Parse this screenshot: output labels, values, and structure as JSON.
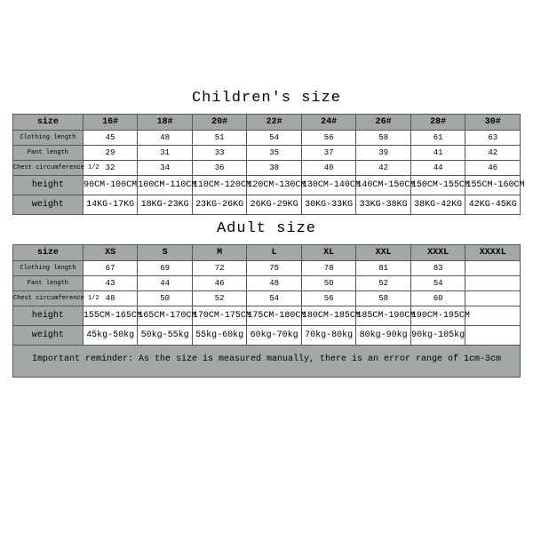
{
  "children": {
    "title": "Children's size",
    "headers": [
      "size",
      "16#",
      "18#",
      "20#",
      "22#",
      "24#",
      "26#",
      "28#",
      "30#"
    ],
    "rows": [
      {
        "label": "Clothing length",
        "label_small": true,
        "cells": [
          "45",
          "48",
          "51",
          "54",
          "56",
          "58",
          "61",
          "63"
        ]
      },
      {
        "label": "Pant length",
        "label_small": true,
        "cells": [
          "29",
          "31",
          "33",
          "35",
          "37",
          "39",
          "41",
          "42"
        ]
      },
      {
        "label": "Chest circumference 1/2",
        "label_small": true,
        "cells": [
          "32",
          "34",
          "36",
          "38",
          "40",
          "42",
          "44",
          "46"
        ]
      },
      {
        "label": "height",
        "tall": true,
        "cells": [
          "90CM-100CM",
          "100CM-110CM",
          "110CM-120CM",
          "120CM-130CM",
          "130CM-140CM",
          "140CM-150CM",
          "150CM-155CM",
          "155CM-160CM"
        ]
      },
      {
        "label": "weight",
        "tall": true,
        "cells": [
          "14KG-17KG",
          "18KG-23KG",
          "23KG-26KG",
          "26KG-29KG",
          "30KG-33KG",
          "33KG-38KG",
          "38KG-42KG",
          "42KG-45KG"
        ]
      }
    ]
  },
  "adult": {
    "title": "Adult size",
    "headers": [
      "size",
      "XS",
      "S",
      "M",
      "L",
      "XL",
      "XXL",
      "XXXL",
      "XXXXL"
    ],
    "rows": [
      {
        "label": "Clothing length",
        "label_small": true,
        "cells": [
          "67",
          "69",
          "72",
          "75",
          "78",
          "81",
          "83",
          ""
        ]
      },
      {
        "label": "Pant length",
        "label_small": true,
        "cells": [
          "43",
          "44",
          "46",
          "48",
          "50",
          "52",
          "54",
          ""
        ]
      },
      {
        "label": "Chest circumference 1/2",
        "label_small": true,
        "cells": [
          "48",
          "50",
          "52",
          "54",
          "56",
          "58",
          "60",
          ""
        ]
      },
      {
        "label": "height",
        "tall": true,
        "cells": [
          "155CM-165CM",
          "165CM-170CM",
          "170CM-175CM",
          "175CM-180CM",
          "180CM-185CM",
          "185CM-190CM",
          "190CM-195CM",
          ""
        ]
      },
      {
        "label": "weight",
        "tall": true,
        "cells": [
          "45kg-50kg",
          "50kg-55kg",
          "55kg-60kg",
          "60kg-70kg",
          "70kg-80kg",
          "80kg-90kg",
          "90kg-105kg",
          ""
        ]
      }
    ]
  },
  "note": "Important reminder: As the size is measured manually, there is an error range of 1cm-3cm",
  "style": {
    "header_bg": "#a3a7a7",
    "border_color": "#575757",
    "font": "Courier New",
    "title_fontsize_pt": 13,
    "cell_fontsize_pt": 7,
    "page_bg": "#ffffff",
    "text_color": "#000000"
  }
}
